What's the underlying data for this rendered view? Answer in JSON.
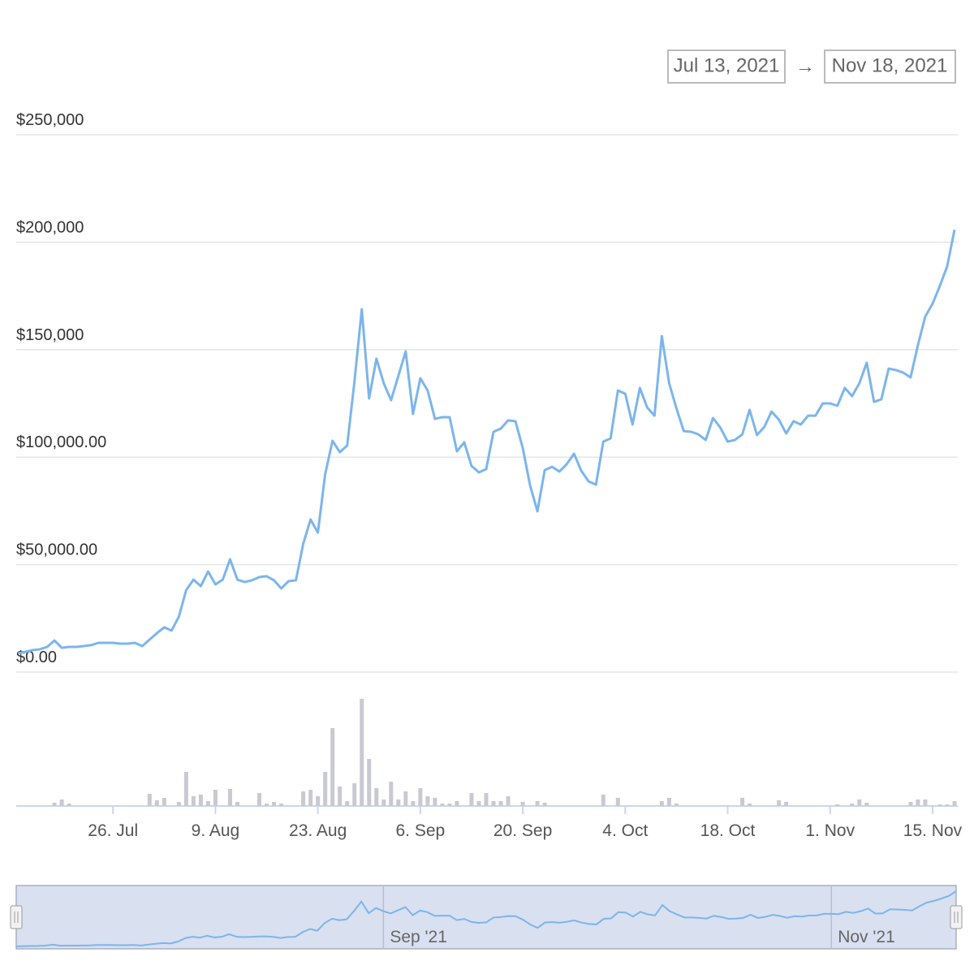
{
  "range_selector": {
    "from": "Jul 13, 2021",
    "separator": "→",
    "to": "Nov 18, 2021"
  },
  "chart_data": {
    "type": "line",
    "x": [
      "2021-07-13",
      "2021-07-14",
      "2021-07-15",
      "2021-07-16",
      "2021-07-17",
      "2021-07-18",
      "2021-07-19",
      "2021-07-20",
      "2021-07-21",
      "2021-07-22",
      "2021-07-23",
      "2021-07-24",
      "2021-07-25",
      "2021-07-26",
      "2021-07-27",
      "2021-07-28",
      "2021-07-29",
      "2021-07-30",
      "2021-07-31",
      "2021-08-01",
      "2021-08-02",
      "2021-08-03",
      "2021-08-04",
      "2021-08-05",
      "2021-08-06",
      "2021-08-07",
      "2021-08-08",
      "2021-08-09",
      "2021-08-10",
      "2021-08-11",
      "2021-08-12",
      "2021-08-13",
      "2021-08-14",
      "2021-08-15",
      "2021-08-16",
      "2021-08-17",
      "2021-08-18",
      "2021-08-19",
      "2021-08-20",
      "2021-08-21",
      "2021-08-22",
      "2021-08-23",
      "2021-08-24",
      "2021-08-25",
      "2021-08-26",
      "2021-08-27",
      "2021-08-28",
      "2021-08-29",
      "2021-08-30",
      "2021-08-31",
      "2021-09-01",
      "2021-09-02",
      "2021-09-03",
      "2021-09-04",
      "2021-09-05",
      "2021-09-06",
      "2021-09-07",
      "2021-09-08",
      "2021-09-09",
      "2021-09-10",
      "2021-09-11",
      "2021-09-12",
      "2021-09-13",
      "2021-09-14",
      "2021-09-15",
      "2021-09-16",
      "2021-09-17",
      "2021-09-18",
      "2021-09-19",
      "2021-09-20",
      "2021-09-21",
      "2021-09-22",
      "2021-09-23",
      "2021-09-24",
      "2021-09-25",
      "2021-09-26",
      "2021-09-27",
      "2021-09-28",
      "2021-09-29",
      "2021-09-30",
      "2021-10-01",
      "2021-10-02",
      "2021-10-03",
      "2021-10-04",
      "2021-10-05",
      "2021-10-06",
      "2021-10-07",
      "2021-10-08",
      "2021-10-09",
      "2021-10-10",
      "2021-10-11",
      "2021-10-12",
      "2021-10-13",
      "2021-10-14",
      "2021-10-15",
      "2021-10-16",
      "2021-10-17",
      "2021-10-18",
      "2021-10-19",
      "2021-10-20",
      "2021-10-21",
      "2021-10-22",
      "2021-10-23",
      "2021-10-24",
      "2021-10-25",
      "2021-10-26",
      "2021-10-27",
      "2021-10-28",
      "2021-10-29",
      "2021-10-30",
      "2021-10-31",
      "2021-11-01",
      "2021-11-02",
      "2021-11-03",
      "2021-11-04",
      "2021-11-05",
      "2021-11-06",
      "2021-11-07",
      "2021-11-08",
      "2021-11-09",
      "2021-11-10",
      "2021-11-11",
      "2021-11-12",
      "2021-11-13",
      "2021-11-14",
      "2021-11-15",
      "2021-11-16",
      "2021-11-17",
      "2021-11-18"
    ],
    "xlim": [
      "2021-07-13",
      "2021-11-18"
    ],
    "xticks": [
      {
        "value": "2021-07-26",
        "label": "26. Jul"
      },
      {
        "value": "2021-08-09",
        "label": "9. Aug"
      },
      {
        "value": "2021-08-23",
        "label": "23. Aug"
      },
      {
        "value": "2021-09-06",
        "label": "6. Sep"
      },
      {
        "value": "2021-09-20",
        "label": "20. Sep"
      },
      {
        "value": "2021-10-04",
        "label": "4. Oct"
      },
      {
        "value": "2021-10-18",
        "label": "18. Oct"
      },
      {
        "value": "2021-11-01",
        "label": "1. Nov"
      },
      {
        "value": "2021-11-15",
        "label": "15. Nov"
      }
    ],
    "ylim": [
      0,
      250000
    ],
    "yticks": [
      {
        "value": 0,
        "label": "$0.00"
      },
      {
        "value": 50000,
        "label": "$50,000.00"
      },
      {
        "value": 100000,
        "label": "$100,000.00"
      },
      {
        "value": 150000,
        "label": "$150,000"
      },
      {
        "value": 200000,
        "label": "$200,000"
      },
      {
        "value": 250000,
        "label": "$250,000"
      }
    ],
    "y2lim": [
      0,
      140
    ],
    "grid": true,
    "series": [
      {
        "color": "#7cb5ec",
        "values": [
          8700,
          9400,
          10200,
          10600,
          11700,
          14700,
          11300,
          11700,
          11700,
          12100,
          12500,
          13600,
          13600,
          13600,
          13200,
          13200,
          13600,
          12100,
          15100,
          18100,
          20800,
          19300,
          25700,
          38100,
          43000,
          40000,
          46800,
          40800,
          43000,
          52500,
          43000,
          41900,
          42700,
          44200,
          44600,
          42700,
          38900,
          42300,
          42700,
          59700,
          71000,
          64900,
          92100,
          107600,
          102300,
          105400,
          135200,
          168800,
          127300,
          145800,
          134400,
          126500,
          137800,
          149200,
          120100,
          136700,
          131000,
          117800,
          118600,
          118600,
          102700,
          106900,
          95900,
          92900,
          94400,
          111800,
          113300,
          117100,
          116700,
          104200,
          86800,
          74800,
          94000,
          95500,
          93300,
          96700,
          101600,
          93600,
          88700,
          87200,
          107200,
          108700,
          131000,
          129500,
          115200,
          132200,
          123100,
          119300,
          156300,
          134400,
          122700,
          112100,
          111800,
          110600,
          108000,
          118200,
          113700,
          107200,
          108000,
          110600,
          122000,
          110300,
          114000,
          121200,
          117400,
          111000,
          116700,
          115200,
          119300,
          119300,
          125000,
          125000,
          123900,
          132200,
          128400,
          134400,
          143900,
          125700,
          126900,
          141200,
          140500,
          139300,
          137100,
          152200,
          165400,
          171400,
          179700,
          188800,
          205800
        ]
      },
      {
        "type": "column",
        "axis": "y2",
        "color": "#c9c9d3",
        "values": [
          0,
          0,
          0,
          0,
          0,
          4,
          8,
          3,
          0,
          0,
          0,
          0,
          0,
          0,
          0,
          0,
          0,
          0,
          15,
          7,
          10,
          0,
          5,
          42,
          12,
          14,
          6,
          20,
          0,
          21,
          5,
          0,
          0,
          16,
          3,
          5,
          3,
          0,
          0,
          18,
          20,
          12,
          42,
          96,
          24,
          6,
          28,
          132,
          58,
          22,
          8,
          30,
          8,
          18,
          6,
          22,
          12,
          10,
          3,
          3,
          6,
          0,
          16,
          6,
          16,
          6,
          6,
          12,
          0,
          5,
          0,
          6,
          4,
          0,
          0,
          0,
          0,
          0,
          0,
          0,
          14,
          0,
          10,
          0,
          0,
          0,
          0,
          0,
          6,
          10,
          3,
          0,
          0,
          0,
          0,
          0,
          0,
          0,
          0,
          10,
          3,
          0,
          0,
          0,
          7,
          5,
          0,
          0,
          0,
          0,
          0,
          0,
          2,
          0,
          3,
          8,
          4,
          0,
          0,
          0,
          0,
          0,
          5,
          8,
          8,
          0,
          2,
          2,
          6
        ]
      }
    ],
    "navigator": {
      "xticks": [
        {
          "value": "2021-09-01",
          "label": "Sep '21"
        },
        {
          "value": "2021-11-01",
          "label": "Nov '21"
        }
      ]
    }
  }
}
